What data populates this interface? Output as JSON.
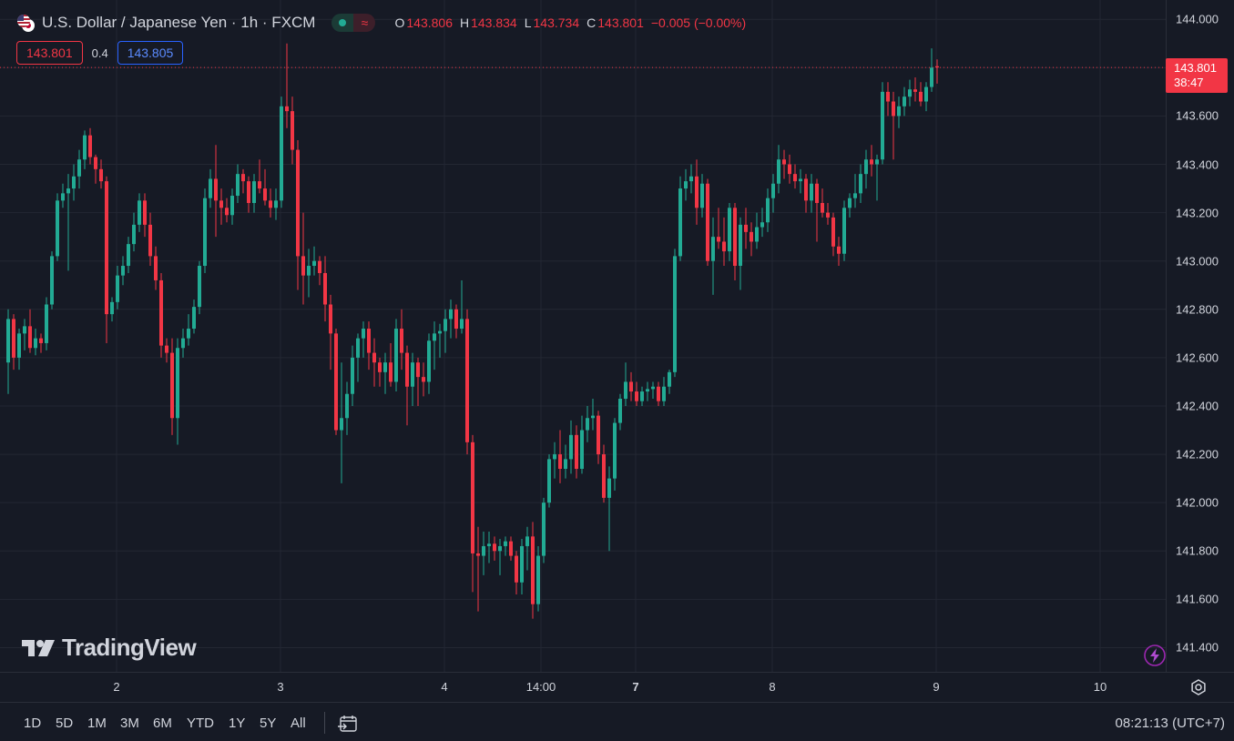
{
  "legend": {
    "symbol": "U.S. Dollar / Japanese Yen · 1h · FXCM",
    "flag_icon": "us-jp-flag-icon",
    "ohlc": [
      {
        "label": "O",
        "value": "143.806"
      },
      {
        "label": "H",
        "value": "143.834"
      },
      {
        "label": "L",
        "value": "143.734"
      },
      {
        "label": "C",
        "value": "143.801"
      },
      {
        "label": "",
        "value": "−0.005 (−0.00%)"
      }
    ],
    "bid": "143.801",
    "spread": "0.4",
    "ask": "143.805"
  },
  "price_scale": {
    "ticks": [
      "144.000",
      "143.800",
      "143.600",
      "143.400",
      "143.200",
      "143.000",
      "142.800",
      "142.600",
      "142.400",
      "142.200",
      "142.000",
      "141.800",
      "141.600",
      "141.400"
    ],
    "last_price": "143.801",
    "countdown": "38:47"
  },
  "time_axis": {
    "ticks": [
      {
        "label": "2",
        "bold": false
      },
      {
        "label": "3",
        "bold": false
      },
      {
        "label": "4",
        "bold": false
      },
      {
        "label": "14:00",
        "bold": false
      },
      {
        "label": "7",
        "bold": true
      },
      {
        "label": "8",
        "bold": false
      },
      {
        "label": "9",
        "bold": false
      },
      {
        "label": "10",
        "bold": false
      }
    ]
  },
  "bottom_bar": {
    "ranges": [
      "1D",
      "5D",
      "1M",
      "3M",
      "6M",
      "YTD",
      "1Y",
      "5Y",
      "All"
    ],
    "clock": "08:21:13 (UTC+7)"
  },
  "logo": "TradingView",
  "colors": {
    "up": "#22ab94",
    "down": "#f23645",
    "background": "#161a25",
    "grid": "#232733"
  },
  "chart_data": {
    "type": "candlestick",
    "title": "U.S. Dollar / Japanese Yen · 1h · FXCM",
    "ylim": [
      141.3,
      144.08
    ],
    "candles": [
      [
        142.58,
        142.8,
        142.45,
        142.76
      ],
      [
        142.76,
        142.78,
        142.55,
        142.6
      ],
      [
        142.6,
        142.72,
        142.55,
        142.7
      ],
      [
        142.7,
        142.76,
        142.63,
        142.73
      ],
      [
        142.73,
        142.8,
        142.62,
        142.64
      ],
      [
        142.64,
        142.72,
        142.61,
        142.68
      ],
      [
        142.68,
        142.7,
        142.62,
        142.66
      ],
      [
        142.66,
        142.85,
        142.63,
        142.82
      ],
      [
        142.82,
        143.04,
        142.8,
        143.02
      ],
      [
        143.02,
        143.28,
        143.0,
        143.25
      ],
      [
        143.25,
        143.32,
        143.22,
        143.28
      ],
      [
        143.28,
        143.36,
        142.96,
        143.3
      ],
      [
        143.3,
        143.4,
        143.25,
        143.35
      ],
      [
        143.35,
        143.46,
        143.3,
        143.42
      ],
      [
        143.42,
        143.54,
        143.38,
        143.52
      ],
      [
        143.52,
        143.55,
        143.4,
        143.43
      ],
      [
        143.43,
        143.44,
        143.32,
        143.38
      ],
      [
        143.38,
        143.42,
        143.3,
        143.33
      ],
      [
        143.33,
        143.35,
        142.66,
        142.78
      ],
      [
        142.78,
        142.85,
        142.75,
        142.83
      ],
      [
        142.83,
        142.98,
        142.8,
        142.94
      ],
      [
        142.94,
        143.02,
        142.9,
        142.98
      ],
      [
        142.98,
        143.1,
        142.95,
        143.07
      ],
      [
        143.07,
        143.2,
        143.04,
        143.15
      ],
      [
        143.15,
        143.28,
        143.12,
        143.25
      ],
      [
        143.25,
        143.28,
        143.1,
        143.15
      ],
      [
        143.15,
        143.2,
        142.98,
        143.02
      ],
      [
        143.02,
        143.06,
        142.88,
        142.92
      ],
      [
        142.92,
        142.95,
        142.6,
        142.65
      ],
      [
        142.65,
        142.68,
        142.58,
        142.62
      ],
      [
        142.62,
        142.68,
        142.28,
        142.35
      ],
      [
        142.35,
        142.68,
        142.24,
        142.64
      ],
      [
        142.64,
        142.72,
        142.6,
        142.68
      ],
      [
        142.68,
        142.78,
        142.65,
        142.72
      ],
      [
        142.72,
        142.84,
        142.7,
        142.81
      ],
      [
        142.81,
        143.0,
        142.78,
        142.98
      ],
      [
        142.98,
        143.3,
        142.95,
        143.26
      ],
      [
        143.26,
        143.38,
        143.22,
        143.34
      ],
      [
        143.34,
        143.48,
        143.1,
        143.25
      ],
      [
        143.25,
        143.3,
        143.15,
        143.22
      ],
      [
        143.22,
        143.26,
        143.16,
        143.19
      ],
      [
        143.19,
        143.3,
        143.15,
        143.27
      ],
      [
        143.27,
        143.4,
        143.24,
        143.36
      ],
      [
        143.36,
        143.38,
        143.28,
        143.33
      ],
      [
        143.33,
        143.35,
        143.2,
        143.24
      ],
      [
        143.24,
        143.36,
        143.2,
        143.33
      ],
      [
        143.33,
        143.42,
        143.28,
        143.3
      ],
      [
        143.3,
        143.38,
        143.23,
        143.25
      ],
      [
        143.25,
        143.3,
        143.18,
        143.22
      ],
      [
        143.22,
        143.3,
        143.17,
        143.25
      ],
      [
        143.25,
        143.68,
        143.22,
        143.64
      ],
      [
        143.64,
        143.9,
        143.55,
        143.62
      ],
      [
        143.62,
        143.68,
        143.4,
        143.46
      ],
      [
        143.46,
        143.5,
        142.88,
        143.02
      ],
      [
        143.02,
        143.2,
        142.82,
        142.94
      ],
      [
        142.94,
        143.05,
        142.85,
        142.98
      ],
      [
        142.98,
        143.06,
        142.94,
        143.0
      ],
      [
        143.0,
        143.02,
        142.9,
        142.95
      ],
      [
        142.95,
        143.02,
        142.75,
        142.82
      ],
      [
        142.82,
        142.86,
        142.55,
        142.7
      ],
      [
        142.7,
        142.72,
        142.28,
        142.3
      ],
      [
        142.3,
        142.58,
        142.08,
        142.35
      ],
      [
        142.35,
        142.5,
        142.28,
        142.45
      ],
      [
        142.45,
        142.65,
        142.4,
        142.6
      ],
      [
        142.6,
        142.7,
        142.5,
        142.68
      ],
      [
        142.68,
        142.75,
        142.6,
        142.72
      ],
      [
        142.72,
        142.75,
        142.55,
        142.62
      ],
      [
        142.62,
        142.68,
        142.48,
        142.58
      ],
      [
        142.58,
        142.6,
        142.48,
        142.54
      ],
      [
        142.54,
        142.62,
        142.45,
        142.58
      ],
      [
        142.58,
        142.66,
        142.48,
        142.5
      ],
      [
        142.5,
        142.76,
        142.46,
        142.72
      ],
      [
        142.72,
        142.8,
        142.55,
        142.62
      ],
      [
        142.62,
        142.65,
        142.32,
        142.48
      ],
      [
        142.48,
        142.62,
        142.4,
        142.58
      ],
      [
        142.58,
        142.6,
        142.4,
        142.52
      ],
      [
        142.52,
        142.58,
        142.44,
        142.5
      ],
      [
        142.5,
        142.7,
        142.45,
        142.67
      ],
      [
        142.67,
        142.75,
        142.55,
        142.7
      ],
      [
        142.7,
        142.74,
        142.6,
        142.71
      ],
      [
        142.71,
        142.8,
        142.62,
        142.76
      ],
      [
        142.76,
        142.84,
        142.68,
        142.8
      ],
      [
        142.8,
        142.82,
        142.68,
        142.72
      ],
      [
        142.72,
        142.92,
        142.7,
        142.76
      ],
      [
        142.76,
        142.8,
        142.2,
        142.25
      ],
      [
        142.25,
        142.28,
        141.63,
        141.79
      ],
      [
        141.79,
        141.9,
        141.55,
        141.78
      ],
      [
        141.78,
        141.88,
        141.7,
        141.82
      ],
      [
        141.82,
        141.88,
        141.75,
        141.83
      ],
      [
        141.83,
        141.86,
        141.76,
        141.8
      ],
      [
        141.8,
        141.85,
        141.7,
        141.82
      ],
      [
        141.82,
        141.86,
        141.78,
        141.84
      ],
      [
        141.84,
        141.86,
        141.76,
        141.78
      ],
      [
        141.78,
        141.8,
        141.62,
        141.67
      ],
      [
        141.67,
        141.85,
        141.62,
        141.82
      ],
      [
        141.82,
        141.9,
        141.72,
        141.86
      ],
      [
        141.86,
        141.92,
        141.52,
        141.58
      ],
      [
        141.58,
        141.82,
        141.55,
        141.78
      ],
      [
        141.78,
        142.02,
        141.75,
        142.0
      ],
      [
        142.0,
        142.2,
        141.98,
        142.18
      ],
      [
        142.18,
        142.25,
        142.1,
        142.2
      ],
      [
        142.2,
        142.3,
        142.08,
        142.14
      ],
      [
        142.14,
        142.24,
        142.1,
        142.18
      ],
      [
        142.18,
        142.34,
        142.12,
        142.28
      ],
      [
        142.28,
        142.32,
        142.1,
        142.14
      ],
      [
        142.14,
        142.36,
        142.12,
        142.3
      ],
      [
        142.3,
        142.4,
        142.25,
        142.35
      ],
      [
        142.35,
        142.43,
        142.3,
        142.36
      ],
      [
        142.36,
        142.38,
        142.16,
        142.2
      ],
      [
        142.2,
        142.24,
        142.0,
        142.02
      ],
      [
        142.02,
        142.15,
        141.8,
        142.1
      ],
      [
        142.1,
        142.35,
        142.05,
        142.33
      ],
      [
        142.33,
        142.45,
        142.3,
        142.43
      ],
      [
        142.43,
        142.58,
        142.4,
        142.5
      ],
      [
        142.5,
        142.54,
        142.42,
        142.46
      ],
      [
        142.46,
        142.5,
        142.4,
        142.42
      ],
      [
        142.42,
        142.48,
        142.4,
        142.46
      ],
      [
        142.46,
        142.5,
        142.42,
        142.47
      ],
      [
        142.47,
        142.5,
        142.43,
        142.48
      ],
      [
        142.48,
        142.5,
        142.4,
        142.42
      ],
      [
        142.42,
        142.52,
        142.4,
        142.48
      ],
      [
        142.48,
        142.55,
        142.45,
        142.54
      ],
      [
        142.54,
        143.05,
        142.52,
        143.02
      ],
      [
        143.02,
        143.35,
        143.0,
        143.3
      ],
      [
        143.3,
        143.38,
        143.25,
        143.33
      ],
      [
        143.33,
        143.4,
        143.28,
        143.35
      ],
      [
        143.35,
        143.42,
        143.15,
        143.22
      ],
      [
        143.22,
        143.36,
        143.18,
        143.32
      ],
      [
        143.32,
        143.34,
        142.98,
        143.0
      ],
      [
        143.0,
        143.18,
        142.86,
        143.1
      ],
      [
        143.1,
        143.22,
        143.05,
        143.08
      ],
      [
        143.08,
        143.18,
        142.98,
        143.04
      ],
      [
        143.04,
        143.24,
        143.0,
        143.22
      ],
      [
        143.22,
        143.24,
        142.92,
        142.98
      ],
      [
        142.98,
        143.18,
        142.88,
        143.15
      ],
      [
        143.15,
        143.22,
        143.05,
        143.12
      ],
      [
        143.12,
        143.16,
        143.02,
        143.08
      ],
      [
        143.08,
        143.2,
        143.05,
        143.14
      ],
      [
        143.14,
        143.22,
        143.1,
        143.16
      ],
      [
        143.16,
        143.3,
        143.12,
        143.26
      ],
      [
        143.26,
        143.36,
        143.2,
        143.32
      ],
      [
        143.32,
        143.48,
        143.28,
        143.42
      ],
      [
        143.42,
        143.46,
        143.34,
        143.4
      ],
      [
        143.4,
        143.44,
        143.32,
        143.36
      ],
      [
        143.36,
        143.4,
        143.3,
        143.33
      ],
      [
        143.33,
        143.38,
        143.28,
        143.34
      ],
      [
        143.34,
        143.36,
        143.2,
        143.25
      ],
      [
        143.25,
        143.36,
        143.2,
        143.32
      ],
      [
        143.32,
        143.34,
        143.08,
        143.24
      ],
      [
        143.24,
        143.3,
        143.18,
        143.2
      ],
      [
        143.2,
        143.24,
        143.15,
        143.18
      ],
      [
        143.18,
        143.2,
        143.02,
        143.06
      ],
      [
        143.06,
        143.1,
        142.98,
        143.03
      ],
      [
        143.03,
        143.25,
        143.0,
        143.22
      ],
      [
        143.22,
        143.28,
        143.18,
        143.26
      ],
      [
        143.26,
        143.36,
        143.22,
        143.28
      ],
      [
        143.28,
        143.4,
        143.24,
        143.36
      ],
      [
        143.36,
        143.46,
        143.3,
        143.42
      ],
      [
        143.42,
        143.48,
        143.35,
        143.4
      ],
      [
        143.4,
        143.44,
        143.25,
        143.42
      ],
      [
        143.42,
        143.74,
        143.4,
        143.7
      ],
      [
        143.7,
        143.74,
        143.6,
        143.66
      ],
      [
        143.66,
        143.7,
        143.42,
        143.6
      ],
      [
        143.6,
        143.68,
        143.55,
        143.64
      ],
      [
        143.64,
        143.72,
        143.6,
        143.68
      ],
      [
        143.68,
        143.75,
        143.64,
        143.71
      ],
      [
        143.71,
        143.76,
        143.66,
        143.7
      ],
      [
        143.7,
        143.74,
        143.64,
        143.66
      ],
      [
        143.66,
        143.74,
        143.62,
        143.72
      ],
      [
        143.72,
        143.88,
        143.7,
        143.8
      ],
      [
        143.806,
        143.834,
        143.734,
        143.801
      ]
    ]
  }
}
